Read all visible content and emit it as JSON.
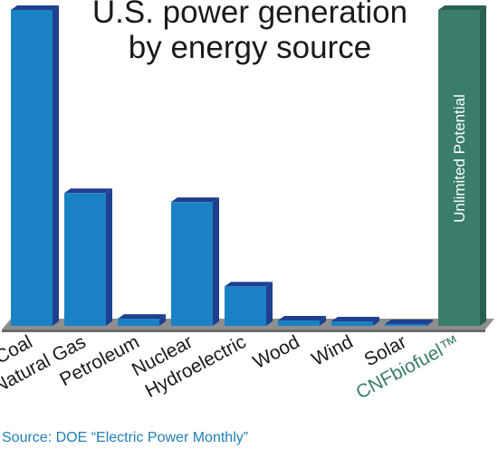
{
  "chart_data": {
    "type": "bar",
    "title": "U.S. power generation",
    "subtitle": "by energy source",
    "categories": [
      "Coal",
      "Natural Gas",
      "Petroleum",
      "Nuclear",
      "Hydroelectric",
      "Wood",
      "Wind",
      "Solar"
    ],
    "values": [
      352,
      148,
      8,
      138,
      44,
      6,
      5,
      1
    ],
    "highlight": {
      "label": "CNFbiofuel™",
      "bar_text": "Unlimited Potential",
      "value": 352,
      "color": "#3a7d6b"
    },
    "ylim": [
      0,
      355
    ],
    "grid": false,
    "bar_color": "#1a82c4",
    "bar_top_color": "#1f3f8f",
    "bar_side_color": "#1f3f8f",
    "floor_color": "#8f8f8f",
    "source": "Source: DOE “Electric Power Monthly”"
  }
}
